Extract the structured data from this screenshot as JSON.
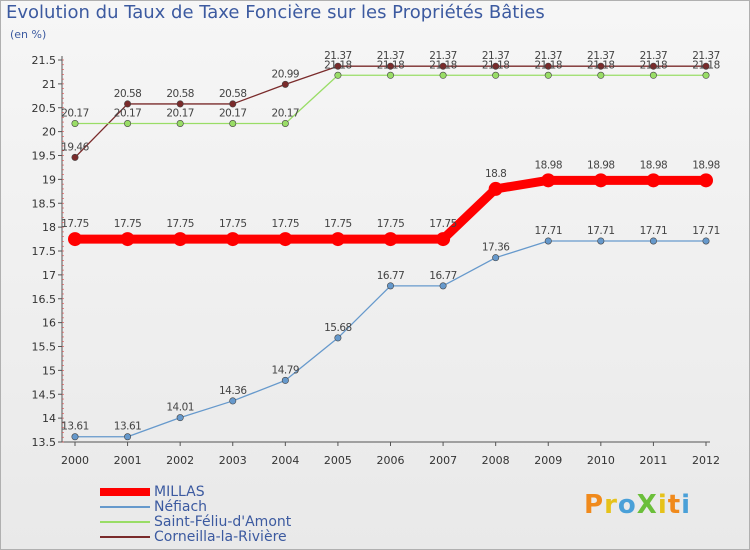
{
  "page": {
    "title": "Evolution du Taux de Taxe Foncière sur les Propriétés Bâties",
    "unit": "(en %)",
    "logo": "ProXiti"
  },
  "chart_data": {
    "type": "line",
    "title": "Evolution du Taux de Taxe Foncière sur les Propriétés Bâties",
    "ylabel": "(en %)",
    "xlabel": "",
    "ylim": [
      13.5,
      21.5
    ],
    "yticks": [
      13.5,
      14,
      14.5,
      15,
      15.5,
      16,
      16.5,
      17,
      17.5,
      18,
      18.5,
      19,
      19.5,
      20,
      20.5,
      21,
      21.5
    ],
    "categories": [
      "2000",
      "2001",
      "2002",
      "2003",
      "2004",
      "2005",
      "2006",
      "2007",
      "2008",
      "2009",
      "2010",
      "2011",
      "2012"
    ],
    "grid": false,
    "legend_position": "bottom-left",
    "series": [
      {
        "name": "MILLAS",
        "color": "#ff0000",
        "style": "thick",
        "values": [
          17.75,
          17.75,
          17.75,
          17.75,
          17.75,
          17.75,
          17.75,
          17.75,
          18.8,
          18.98,
          18.98,
          18.98,
          18.98
        ],
        "labels": [
          "17.75",
          "17.75",
          "17.75",
          "17.75",
          "17.75",
          "17.75",
          "17.75",
          "17.75",
          "18.8",
          "18.98",
          "18.98",
          "18.98",
          "18.98"
        ]
      },
      {
        "name": "Néfiach",
        "color": "#6699cc",
        "style": "thin",
        "values": [
          13.61,
          13.61,
          14.01,
          14.36,
          14.79,
          15.68,
          16.77,
          16.77,
          17.36,
          17.71,
          17.71,
          17.71,
          17.71
        ],
        "labels": [
          "13.61",
          "13.61",
          "14.01",
          "14.36",
          "14.79",
          "15.68",
          "16.77",
          "16.77",
          "17.36",
          "17.71",
          "17.71",
          "17.71",
          "17.71"
        ]
      },
      {
        "name": "Saint-Féliu-d'Amont",
        "color": "#99dd66",
        "style": "thin",
        "values": [
          20.17,
          20.17,
          20.17,
          20.17,
          20.17,
          21.18,
          21.18,
          21.18,
          21.18,
          21.18,
          21.18,
          21.18,
          21.18
        ],
        "labels": [
          "20.17",
          "20.17",
          "20.17",
          "20.17",
          "20.17",
          "21.18",
          "21.18",
          "21.18",
          "21.18",
          "21.18",
          "21.18",
          "21.18",
          "21.18"
        ]
      },
      {
        "name": "Corneilla-la-Rivière",
        "color": "#7a2b2b",
        "style": "thin",
        "values": [
          19.46,
          20.58,
          20.58,
          20.58,
          20.99,
          21.37,
          21.37,
          21.37,
          21.37,
          21.37,
          21.37,
          21.37,
          21.37
        ],
        "labels": [
          "19.46",
          "20.58",
          "20.58",
          "20.58",
          "20.99",
          "21.37",
          "21.37",
          "21.37",
          "21.37",
          "21.37",
          "21.37",
          "21.37",
          "21.37"
        ]
      }
    ]
  }
}
